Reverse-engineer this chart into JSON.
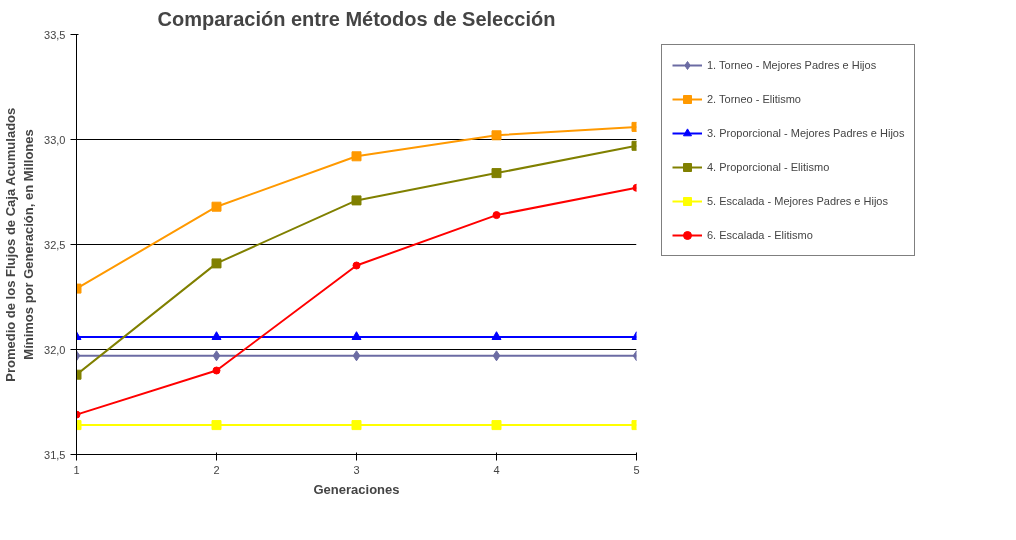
{
  "chart_data": {
    "type": "line",
    "title": "Comparación entre Métodos de Selección",
    "xlabel": "Generaciones",
    "ylabel": "Promedio de los Flujos de Caja Acumulados Mínimos por Generación, en Millones",
    "x": [
      1,
      2,
      3,
      4,
      5
    ],
    "xlim": [
      1,
      5
    ],
    "xticks": [
      1,
      2,
      3,
      4,
      5
    ],
    "ylim": [
      31.5,
      33.5
    ],
    "yticks": [
      {
        "value": 31.5,
        "label": "31,5"
      },
      {
        "value": 32.0,
        "label": "32,0"
      },
      {
        "value": 32.5,
        "label": "32,5"
      },
      {
        "value": 33.0,
        "label": "33,0"
      },
      {
        "value": 33.5,
        "label": "33,5"
      }
    ],
    "grid": "y",
    "legend": "right",
    "series": [
      {
        "name": "1. Torneo - Mejores Padres e Hijos",
        "color": "#6b6ba3",
        "marker": "diamond",
        "values": [
          31.97,
          31.97,
          31.97,
          31.97,
          31.97
        ]
      },
      {
        "name": "2. Torneo - Elitismo",
        "color": "#ff9900",
        "marker": "square",
        "values": [
          32.29,
          32.68,
          32.92,
          33.02,
          33.06
        ]
      },
      {
        "name": "3. Proporcional - Mejores Padres e Hijos",
        "color": "#0000ff",
        "marker": "triangle",
        "values": [
          32.06,
          32.06,
          32.06,
          32.06,
          32.06
        ]
      },
      {
        "name": "4. Proporcional - Elitismo",
        "color": "#808000",
        "marker": "square",
        "values": [
          31.88,
          32.41,
          32.71,
          32.84,
          32.97
        ]
      },
      {
        "name": "5. Escalada - Mejores Padres e Hijos",
        "color": "#ffff00",
        "marker": "square",
        "values": [
          31.64,
          31.64,
          31.64,
          31.64,
          31.64
        ]
      },
      {
        "name": "6. Escalada - Elitismo",
        "color": "#ff0000",
        "marker": "circle",
        "values": [
          31.69,
          31.9,
          32.4,
          32.64,
          32.77
        ]
      }
    ]
  }
}
